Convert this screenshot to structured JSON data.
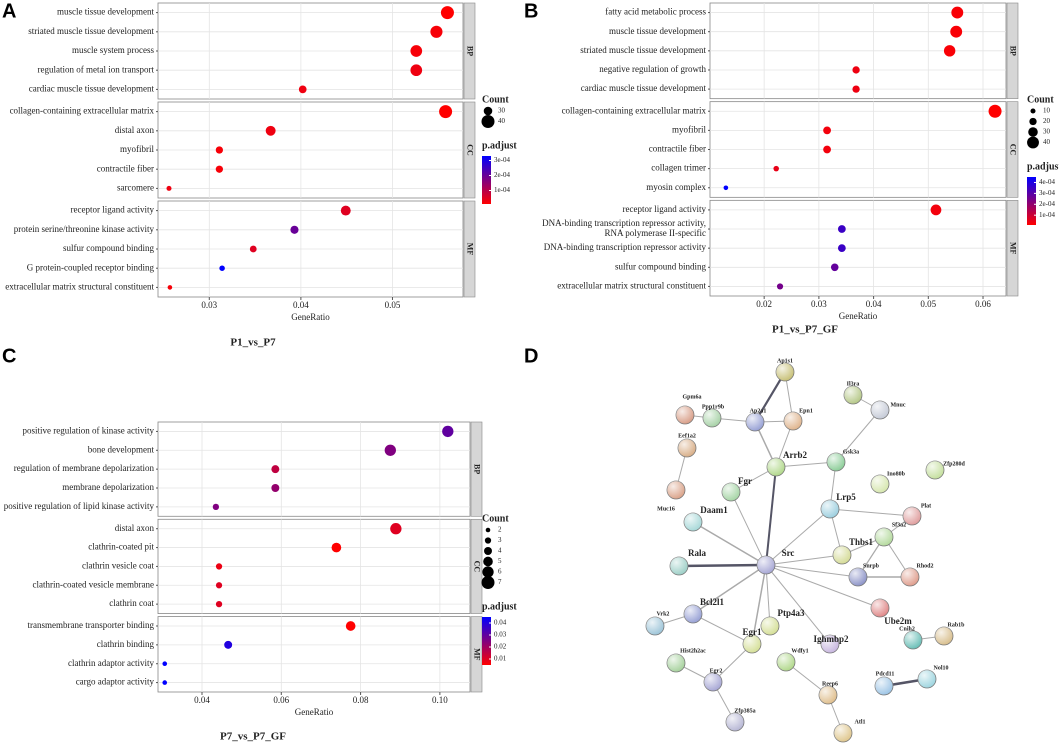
{
  "chart_data": [
    {
      "type": "dot",
      "panel": "A",
      "title": "P1_vs_P7",
      "x_label": "GeneRatio",
      "xlim": [
        0.0244,
        0.0577
      ],
      "xticks": [
        0.03,
        0.04,
        0.05
      ],
      "grid": true,
      "facets": [
        {
          "name": "BP",
          "categories": [
            "muscle tissue development",
            "striated muscle tissue development",
            "muscle system process",
            "regulation of metal ion transport",
            "cardiac muscle tissue development"
          ],
          "values": [
            0.056,
            0.0548,
            0.0526,
            0.0526,
            0.0402
          ],
          "counts": [
            40,
            38,
            37,
            37,
            28
          ],
          "p_adjust": [
            1e-05,
            2e-05,
            2e-05,
            3e-05,
            3e-05
          ]
        },
        {
          "name": "CC",
          "categories": [
            "collagen-containing extracellular matrix",
            "distal axon",
            "myofibril",
            "contractile fiber",
            "sarcomere"
          ],
          "values": [
            0.0558,
            0.0367,
            0.0311,
            0.0311,
            0.0256
          ],
          "counts": [
            40,
            33,
            27,
            27,
            22
          ],
          "p_adjust": [
            1e-05,
            3e-05,
            2e-05,
            2e-05,
            3e-05
          ]
        },
        {
          "name": "MF",
          "categories": [
            "receptor ligand activity",
            "protein serine/threonine kinase activity",
            "sulfur compound binding",
            "G protein-coupled receptor binding",
            "extracellular matrix structural constituent"
          ],
          "values": [
            0.0449,
            0.0393,
            0.0348,
            0.0314,
            0.0257
          ],
          "counts": [
            33,
            29,
            26,
            23,
            21
          ],
          "p_adjust": [
            5e-05,
            0.0002,
            5e-05,
            0.00033,
            2e-05
          ]
        }
      ],
      "size_legend": {
        "title": "Count",
        "values": [
          30,
          40
        ]
      },
      "color_legend": {
        "title": "p.adjust",
        "ticks": [
          {
            "value": 0.0001,
            "label": "1e-04"
          },
          {
            "value": 0.0002,
            "label": "2e-04"
          },
          {
            "value": 0.0003,
            "label": "3e-04"
          }
        ],
        "colors": [
          "#ff0000",
          "#0000ff"
        ]
      }
    },
    {
      "type": "dot",
      "panel": "B",
      "title": "P1_vs_P7_GF",
      "x_label": "GeneRatio",
      "xlim": [
        0.0101,
        0.0642
      ],
      "xticks": [
        0.02,
        0.03,
        0.04,
        0.05,
        0.06
      ],
      "grid": true,
      "facets": [
        {
          "name": "BP",
          "categories": [
            "fatty acid metabolic process",
            "muscle tissue development",
            "striated muscle tissue development",
            "negative regulation of growth",
            "cardiac muscle tissue development"
          ],
          "values": [
            0.0553,
            0.0551,
            0.0539,
            0.0368,
            0.0368
          ],
          "counts": [
            40,
            40,
            38,
            20,
            20
          ],
          "p_adjust": [
            2e-05,
            2e-05,
            2e-05,
            4e-05,
            4e-05
          ]
        },
        {
          "name": "CC",
          "categories": [
            "collagen-containing extracellular matrix",
            "myofibril",
            "contractile fiber",
            "collagen trimer",
            "myosin complex"
          ],
          "values": [
            0.0622,
            0.0315,
            0.0315,
            0.0222,
            0.013
          ],
          "counts": [
            45,
            22,
            22,
            12,
            8
          ],
          "p_adjust": [
            1e-05,
            3e-05,
            3e-05,
            5e-05,
            0.00045
          ]
        },
        {
          "name": "MF",
          "categories": [
            "receptor ligand activity",
            "DNA-binding transcription repressor activity, RNA polymerase II-specific",
            "DNA-binding transcription repressor activity",
            "sulfur compound binding",
            "extracellular matrix structural constituent"
          ],
          "values": [
            0.0514,
            0.0342,
            0.0342,
            0.0329,
            0.0229
          ],
          "counts": [
            35,
            22,
            22,
            21,
            15
          ],
          "p_adjust": [
            3e-05,
            0.00035,
            0.00035,
            0.00028,
            0.00025
          ]
        }
      ],
      "size_legend": {
        "title": "Count",
        "values": [
          10,
          20,
          30,
          40
        ]
      },
      "color_legend": {
        "title": "p.adjust",
        "ticks": [
          {
            "value": 0.0001,
            "label": "1e-04"
          },
          {
            "value": 0.0002,
            "label": "2e-04"
          },
          {
            "value": 0.0003,
            "label": "3e-04"
          },
          {
            "value": 0.0004,
            "label": "4e-04"
          }
        ],
        "colors": [
          "#ff0000",
          "#0000ff"
        ]
      }
    },
    {
      "type": "dot",
      "panel": "C",
      "title": "P7_vs_P7_GF",
      "x_label": "GeneRatio",
      "xlim": [
        0.0289,
        0.1076
      ],
      "xticks": [
        0.04,
        0.06,
        0.08,
        {
          "value": 0.1,
          "label": "0.10"
        }
      ],
      "grid": true,
      "facets": [
        {
          "name": "BP",
          "categories": [
            "positive regulation of kinase activity",
            "bone development",
            "regulation of membrane depolarization",
            "membrane depolarization",
            "positive regulation of lipid kinase activity"
          ],
          "values": [
            0.102,
            0.0875,
            0.0585,
            0.0585,
            0.0435
          ],
          "counts": [
            6,
            6,
            4,
            4,
            3
          ],
          "p_adjust": [
            0.03,
            0.025,
            0.015,
            0.022,
            0.025
          ]
        },
        {
          "name": "CC",
          "categories": [
            "distal axon",
            "clathrin-coated pit",
            "clathrin vesicle coat",
            "clathrin-coated vesicle membrane",
            "clathrin coat"
          ],
          "values": [
            0.0889,
            0.0739,
            0.0443,
            0.0443,
            0.0443
          ],
          "counts": [
            6,
            5,
            3,
            3,
            3
          ],
          "p_adjust": [
            0.01,
            0.005,
            0.008,
            0.01,
            0.01
          ]
        },
        {
          "name": "MF",
          "categories": [
            "transmembrane transporter binding",
            "clathrin binding",
            "clathrin adaptor activity",
            "cargo adaptor activity"
          ],
          "values": [
            0.0775,
            0.0466,
            0.0306,
            0.0306
          ],
          "counts": [
            5,
            4,
            2,
            2
          ],
          "p_adjust": [
            0.005,
            0.04,
            0.045,
            0.045
          ]
        }
      ],
      "size_legend": {
        "title": "Count",
        "values": [
          2,
          3,
          4,
          5,
          6,
          7
        ]
      },
      "color_legend": {
        "title": "p.adjust",
        "ticks": [
          0.01,
          0.02,
          0.03,
          0.04
        ],
        "colors": [
          "#ff0000",
          "#0000ff"
        ]
      }
    }
  ],
  "network": {
    "panel": "D",
    "nodes": [
      {
        "label": "Ap1s1",
        "color": "#c9c27a"
      },
      {
        "label": "Gpm6a",
        "color": "#d9a08a"
      },
      {
        "label": "Ppp1r9b",
        "color": "#a9d3a9"
      },
      {
        "label": "Ap2a1",
        "color": "#9aa3d6"
      },
      {
        "label": "Epn1",
        "color": "#e0b690"
      },
      {
        "label": "Il3ra",
        "color": "#b7c98a"
      },
      {
        "label": "Mnuc",
        "color": "#c7ccd8"
      },
      {
        "label": "Eef1a2",
        "color": "#d9b08a"
      },
      {
        "label": "Gsk3a",
        "color": "#8fcf9b"
      },
      {
        "label": "Arrb2",
        "color": "#b3d98e",
        "label_color": "#3355aa"
      },
      {
        "label": "Zfp280d",
        "color": "#c6e0a0"
      },
      {
        "label": "Ino80b",
        "color": "#d7e7b0"
      },
      {
        "label": "Muc16",
        "color": "#dba58c"
      },
      {
        "label": "Fgr",
        "color": "#a8d6a8",
        "label_color": "#3355aa"
      },
      {
        "label": "Lrp5",
        "color": "#9fd0e0",
        "label_color": "#3355aa"
      },
      {
        "label": "Plat",
        "color": "#e0a0a0"
      },
      {
        "label": "Daam1",
        "color": "#a9d9d9",
        "label_color": "#3355aa"
      },
      {
        "label": "Sf3a2",
        "color": "#b6dba0"
      },
      {
        "label": "Thbs1",
        "color": "#d6dc9a",
        "label_color": "#3355aa"
      },
      {
        "label": "Rala",
        "color": "#9fd0c8",
        "label_color": "#dd2222"
      },
      {
        "label": "Src",
        "color": "#a9a9d6",
        "label_color": "#3355aa"
      },
      {
        "label": "Snrpb",
        "color": "#8f96c9"
      },
      {
        "label": "Rhod2",
        "color": "#e0a090"
      },
      {
        "label": "Ube2m",
        "color": "#e08a8a",
        "label_color": "#3355aa"
      },
      {
        "label": "Bcl2l1",
        "color": "#9aa3d6",
        "label_color": "#3355aa"
      },
      {
        "label": "Ptp4a3",
        "color": "#d6e09a",
        "label_color": "#3355aa"
      },
      {
        "label": "Vrk2",
        "color": "#9fc6d9"
      },
      {
        "label": "Egr1",
        "color": "#d6e09a",
        "label_color": "#3355aa"
      },
      {
        "label": "Ighmbp2",
        "color": "#c9b8e0",
        "label_color": "#3355aa"
      },
      {
        "label": "Cnih2",
        "color": "#6cc0b8"
      },
      {
        "label": "Rab1b",
        "color": "#d9c090"
      },
      {
        "label": "Hist2h2ac",
        "color": "#a9d3a0"
      },
      {
        "label": "Wdfy1",
        "color": "#b3d98e"
      },
      {
        "label": "Egr2",
        "color": "#a9a9d6"
      },
      {
        "label": "Reep6",
        "color": "#e0c090"
      },
      {
        "label": "Pdcd11",
        "color": "#9fc6e6"
      },
      {
        "label": "Nol10",
        "color": "#a0d6e0"
      },
      {
        "label": "Zfp385a",
        "color": "#b9b9d6"
      },
      {
        "label": "Atl1",
        "color": "#e0c890"
      }
    ]
  }
}
